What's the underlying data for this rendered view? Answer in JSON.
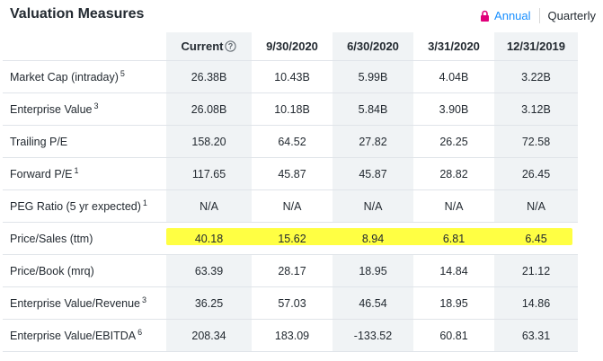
{
  "section": {
    "title": "Valuation Measures",
    "toggle": {
      "annual_label": "Annual",
      "quarterly_label": "Quarterly",
      "selected": "Annual"
    }
  },
  "table": {
    "headers": [
      "Current",
      "9/30/2020",
      "6/30/2020",
      "3/31/2020",
      "12/31/2019"
    ],
    "rows": [
      {
        "label": "Market Cap (intraday)",
        "footnote": "5",
        "values": [
          "26.38B",
          "10.43B",
          "5.99B",
          "4.04B",
          "3.22B"
        ]
      },
      {
        "label": "Enterprise Value",
        "footnote": "3",
        "values": [
          "26.08B",
          "10.18B",
          "5.84B",
          "3.90B",
          "3.12B"
        ]
      },
      {
        "label": "Trailing P/E",
        "footnote": "",
        "values": [
          "158.20",
          "64.52",
          "27.82",
          "26.25",
          "72.58"
        ]
      },
      {
        "label": "Forward P/E",
        "footnote": "1",
        "values": [
          "117.65",
          "45.87",
          "45.87",
          "28.82",
          "26.45"
        ]
      },
      {
        "label": "PEG Ratio (5 yr expected)",
        "footnote": "1",
        "values": [
          "N/A",
          "N/A",
          "N/A",
          "N/A",
          "N/A"
        ]
      },
      {
        "label": "Price/Sales (ttm)",
        "footnote": "",
        "values": [
          "40.18",
          "15.62",
          "8.94",
          "6.81",
          "6.45"
        ]
      },
      {
        "label": "Price/Book (mrq)",
        "footnote": "",
        "values": [
          "63.39",
          "28.17",
          "18.95",
          "14.84",
          "21.12"
        ]
      },
      {
        "label": "Enterprise Value/Revenue",
        "footnote": "3",
        "values": [
          "36.25",
          "57.03",
          "46.54",
          "18.95",
          "14.86"
        ]
      },
      {
        "label": "Enterprise Value/EBITDA",
        "footnote": "6",
        "values": [
          "208.34",
          "183.09",
          "-133.52",
          "60.81",
          "63.31"
        ]
      }
    ]
  },
  "colors": {
    "accent": "#188fff",
    "lock": "#e0007a",
    "highlight": "#ffff33",
    "shade": "#f0f3f5"
  },
  "icons": {
    "lock": "lock-icon",
    "info": "info-icon"
  }
}
